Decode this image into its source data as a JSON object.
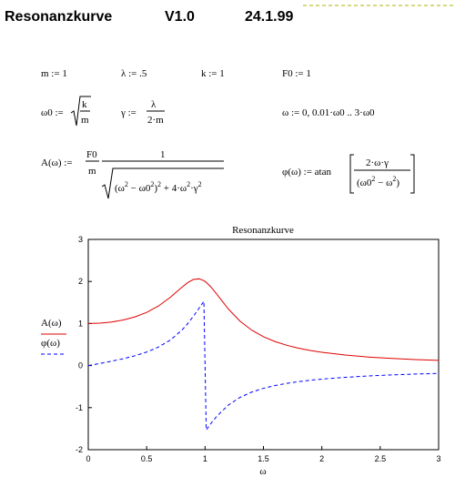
{
  "header": {
    "title": "Resonanzkurve",
    "version": "V1.0",
    "date": "24.1.99"
  },
  "definitions": {
    "m": "m := 1",
    "lambda": "λ := .5",
    "k": "k := 1",
    "F0": "F0 := 1",
    "omega_range": "ω := 0, 0.01·ω0 .. 3·ω0"
  },
  "omega0": {
    "lhs": "ω0 :=",
    "num": "k",
    "den": "m"
  },
  "gamma": {
    "lhs": "γ :=",
    "num": "λ",
    "den": "2·m"
  },
  "A": {
    "lhs": "A(ω) :=",
    "num1": "F0",
    "den1": "m",
    "num2": "1",
    "den2": [
      "(ω",
      "2",
      " − ω0",
      "2",
      ")",
      "2",
      " + 4·ω",
      "2",
      "·γ",
      "2"
    ]
  },
  "phi": {
    "lhs": "φ(ω) := atan",
    "num": "2·ω·γ",
    "den": [
      "(ω0",
      "2",
      " − ω",
      "2",
      ")"
    ]
  },
  "chart_data": {
    "type": "line",
    "title": "Resonanzkurve",
    "x_label": "ω",
    "x": [
      0,
      0.1,
      0.2,
      0.3,
      0.4,
      0.5,
      0.6,
      0.7,
      0.8,
      0.85,
      0.9,
      0.95,
      0.99,
      1.01,
      1.05,
      1.1,
      1.2,
      1.3,
      1.4,
      1.5,
      1.6,
      1.7,
      1.8,
      1.9,
      2.0,
      2.2,
      2.4,
      2.6,
      2.8,
      3.0
    ],
    "series": [
      {
        "name": "A(ω)",
        "color": "#e00000",
        "line_style": "solid",
        "values": [
          1,
          1.0088,
          1.0361,
          1.0843,
          1.1581,
          1.2649,
          1.4148,
          1.6167,
          1.8582,
          1.9702,
          2.0472,
          2.0623,
          2.0186,
          1.9786,
          1.8695,
          1.6986,
          1.344,
          1.0549,
          0.8417,
          0.686,
          0.5704,
          0.4825,
          0.4142,
          0.36,
          0.3162,
          0.2503,
          0.2037,
          0.1694,
          0.1432,
          0.1229
        ]
      },
      {
        "name": "φ(ω)",
        "color": "#0000ff",
        "line_style": "dashed",
        "values": [
          0,
          0.0505,
          0.1038,
          0.1634,
          0.2337,
          0.3218,
          0.4388,
          0.6013,
          0.838,
          0.9922,
          1.1714,
          1.3684,
          1.5306,
          -1.531,
          -1.3779,
          -1.2061,
          -0.9383,
          -0.7555,
          -0.6302,
          -0.5404,
          -0.4739,
          -0.4224,
          -0.3821,
          -0.3494,
          -0.3218,
          -0.2789,
          -0.247,
          -0.222,
          -0.2019,
          -0.1853
        ]
      }
    ],
    "xlim": [
      0,
      3
    ],
    "xticks": [
      0,
      0.5,
      1,
      1.5,
      2,
      2.5,
      3
    ],
    "ylim": [
      -2,
      3
    ],
    "yticks": [
      -2,
      -1,
      0,
      1,
      2,
      3
    ],
    "grid": false,
    "legend": "left"
  }
}
